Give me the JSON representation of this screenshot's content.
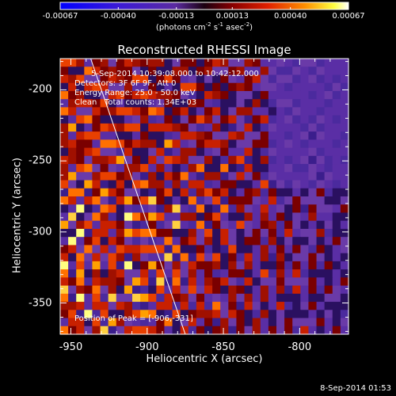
{
  "colorbar": {
    "tick_labels": [
      "-0.00067",
      "-0.00040",
      "-0.00013",
      "0.00013",
      "0.00040",
      "0.00067"
    ],
    "tick_values": [
      -0.00067,
      -0.0004,
      -0.00013,
      0.00013,
      0.0004,
      0.00067
    ],
    "range": [
      -0.00067,
      0.00067
    ],
    "units_prefix": "(photons cm",
    "units_exp1": "-2",
    "units_mid1": " s",
    "units_exp2": "-1",
    "units_mid2": " asec",
    "units_exp3": "-2",
    "units_suffix": ")"
  },
  "chart_data": {
    "type": "heatmap",
    "title": "Reconstructed RHESSI Image",
    "xlabel": "Heliocentric X (arcsec)",
    "ylabel": "Heliocentric Y (arcsec)",
    "xlim": [
      -957,
      -768
    ],
    "ylim": [
      -372,
      -178
    ],
    "x_ticks": [
      -950,
      -900,
      -850,
      -800
    ],
    "x_tick_labels": [
      "-950",
      "-900",
      "-850",
      "-800"
    ],
    "y_ticks": [
      -200,
      -250,
      -300,
      -350
    ],
    "y_tick_labels": [
      "-200",
      "-250",
      "-300",
      "-350"
    ],
    "peak": [
      -906,
      -331
    ],
    "limb_line": [
      [
        -937,
        -178
      ],
      [
        -875,
        -372
      ]
    ]
  },
  "annotations": {
    "time_range": "5-Sep-2014 10:39:08.000 to 10:42:12.000",
    "detectors": "Detectors: 3F 6F 9F, Att 0",
    "energy": "Energy Range: 25.0 - 50.0 keV",
    "clean": "Clean   Total counts: 1.34E+03",
    "peak_text": "Position of Peak = [-906,-331]"
  },
  "footer": {
    "date": "8-Sep-2014 01:53"
  }
}
